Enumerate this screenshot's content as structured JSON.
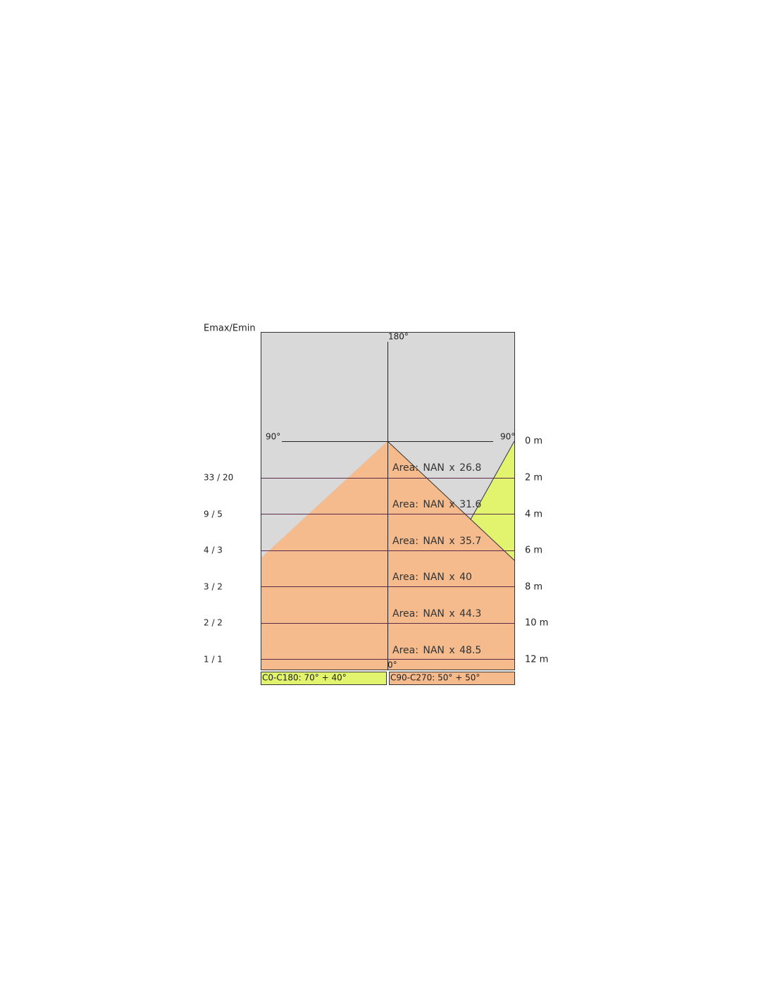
{
  "diagram": {
    "title": "Emax/Emin",
    "angles": {
      "top": "180°",
      "left": "90°",
      "right": "90°",
      "bottom": "0°"
    },
    "rows": [
      {
        "distance": "0 m"
      },
      {
        "distance": "2 m",
        "ratio": "33 / 20",
        "area": "Area: NAN x 26.8"
      },
      {
        "distance": "4 m",
        "ratio": "9 / 5",
        "area": "Area: NAN x 31.6"
      },
      {
        "distance": "6 m",
        "ratio": "4 / 3",
        "area": "Area: NAN x 35.7"
      },
      {
        "distance": "8 m",
        "ratio": "3 / 2",
        "area": "Area: NAN x 40"
      },
      {
        "distance": "10 m",
        "ratio": "2 / 2",
        "area": "Area: NAN x 44.3"
      },
      {
        "distance": "12 m",
        "ratio": "1 / 1",
        "area": "Area: NAN x 48.5"
      }
    ],
    "legend": [
      "C0-C180: 70° + 40°",
      "C90-C270: 50° + 50°"
    ]
  }
}
